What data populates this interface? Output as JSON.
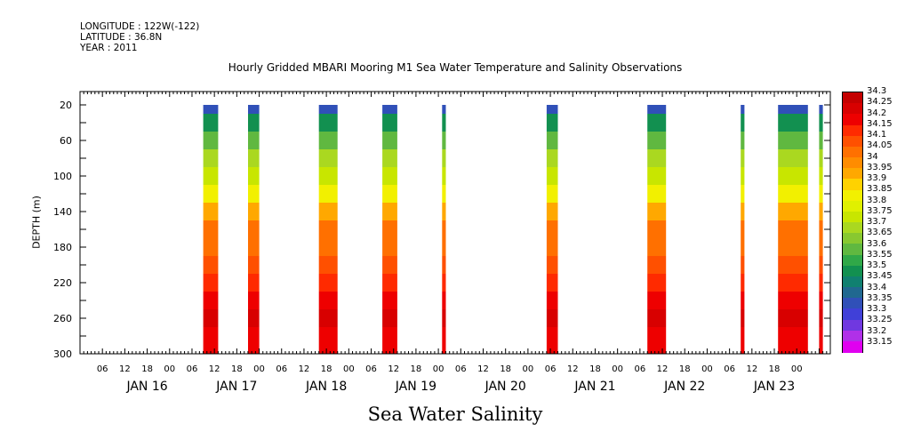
{
  "header": {
    "longitude": "LONGITUDE : 122W(-122)",
    "latitude": "LATITUDE : 36.8N",
    "year": "YEAR : 2011",
    "title": "Hourly Gridded MBARI Mooring M1 Sea Water Temperature and Salinity Observations"
  },
  "bottom_title": "Sea Water Salinity",
  "chart_data": {
    "type": "heatmap",
    "title": "Hourly Gridded MBARI Mooring M1 Sea Water Temperature and Salinity Observations",
    "subtitle": "Sea Water Salinity",
    "ylabel": "DEPTH (m)",
    "xlabel": "",
    "x_unit": "hours since JAN 15 2011 00:00",
    "xlim": [
      0,
      201
    ],
    "ylim": [
      300,
      0
    ],
    "y_inverted": true,
    "y_ticks": [
      20,
      60,
      100,
      140,
      180,
      220,
      260,
      300
    ],
    "x_hour_ticks": [
      "06",
      "12",
      "18",
      "00",
      "06",
      "12",
      "18",
      "00",
      "06",
      "12",
      "18",
      "00",
      "06",
      "12",
      "18",
      "00",
      "06",
      "12",
      "18",
      "00",
      "06",
      "12",
      "18",
      "00",
      "06",
      "12",
      "18",
      "00",
      "06",
      "12",
      "18",
      "00"
    ],
    "x_day_labels": [
      "JAN 16",
      "JAN 17",
      "JAN 18",
      "JAN 19",
      "JAN 20",
      "JAN 21",
      "JAN 22",
      "JAN 23"
    ],
    "colorbar_levels": [
      "34.3",
      "34.25",
      "34.2",
      "34.15",
      "34.1",
      "34.05",
      "34",
      "33.95",
      "33.9",
      "33.85",
      "33.8",
      "33.75",
      "33.7",
      "33.65",
      "33.6",
      "33.55",
      "33.5",
      "33.45",
      "33.4",
      "33.35",
      "33.3",
      "33.25",
      "33.2",
      "33.15"
    ],
    "colorbar_colors": [
      "#c40000",
      "#d80000",
      "#ee0000",
      "#ff2a00",
      "#ff5000",
      "#ff7000",
      "#ff8c00",
      "#ffa800",
      "#ffd200",
      "#f2f000",
      "#e0f000",
      "#c8e600",
      "#aad820",
      "#88c830",
      "#60b840",
      "#30a848",
      "#129050",
      "#108070",
      "#206890",
      "#3050b8",
      "#4040d8",
      "#7038e0",
      "#b030e8",
      "#e000f0"
    ],
    "depth_profile": [
      {
        "depth": 20,
        "salinity": 33.38
      },
      {
        "depth": 40,
        "salinity": 33.52
      },
      {
        "depth": 60,
        "salinity": 33.62
      },
      {
        "depth": 80,
        "salinity": 33.7
      },
      {
        "depth": 100,
        "salinity": 33.76
      },
      {
        "depth": 120,
        "salinity": 33.85
      },
      {
        "depth": 140,
        "salinity": 33.98
      },
      {
        "depth": 160,
        "salinity": 34.05
      },
      {
        "depth": 180,
        "salinity": 34.07
      },
      {
        "depth": 200,
        "salinity": 34.12
      },
      {
        "depth": 220,
        "salinity": 34.18
      },
      {
        "depth": 240,
        "salinity": 34.24
      },
      {
        "depth": 260,
        "salinity": 34.28
      },
      {
        "depth": 280,
        "salinity": 34.24
      },
      {
        "depth": 300,
        "salinity": 34.2
      }
    ],
    "observation_segments": [
      {
        "start_hour": 33,
        "end_hour": 37
      },
      {
        "start_hour": 45,
        "end_hour": 48
      },
      {
        "start_hour": 64,
        "end_hour": 69
      },
      {
        "start_hour": 81,
        "end_hour": 85
      },
      {
        "start_hour": 97,
        "end_hour": 98
      },
      {
        "start_hour": 125,
        "end_hour": 128
      },
      {
        "start_hour": 152,
        "end_hour": 157
      },
      {
        "start_hour": 177,
        "end_hour": 178
      },
      {
        "start_hour": 187,
        "end_hour": 195
      },
      {
        "start_hour": 198,
        "end_hour": 199
      }
    ]
  }
}
